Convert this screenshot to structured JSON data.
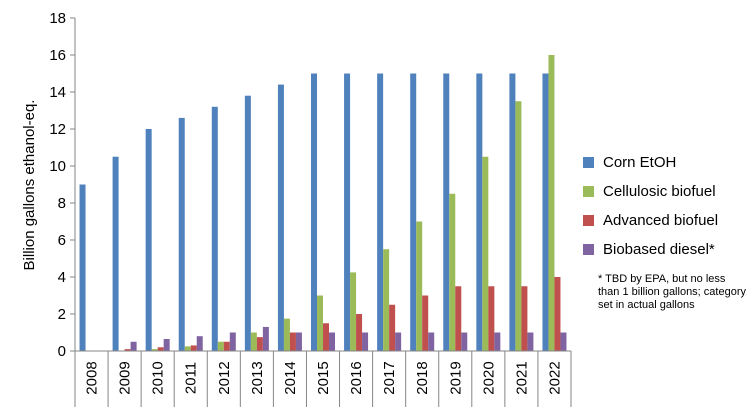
{
  "chart_data": {
    "type": "bar",
    "ylabel": "Billion gallons ethanol-eq.",
    "ylim": [
      0,
      18
    ],
    "yticks": [
      "0",
      "2",
      "4",
      "6",
      "8",
      "10",
      "12",
      "14",
      "16",
      "18"
    ],
    "categories": [
      "2008",
      "2009",
      "2010",
      "2011",
      "2012",
      "2013",
      "2014",
      "2015",
      "2016",
      "2017",
      "2018",
      "2019",
      "2020",
      "2021",
      "2022"
    ],
    "series": [
      {
        "name": "Corn EtOH",
        "color": "#4f81bd",
        "values": [
          9,
          10.5,
          12,
          12.6,
          13.2,
          13.8,
          14.4,
          15,
          15,
          15,
          15,
          15,
          15,
          15,
          15
        ]
      },
      {
        "name": "Cellulosic biofuel",
        "color": "#9bbb59",
        "values": [
          0,
          0,
          0.1,
          0.25,
          0.5,
          1,
          1.75,
          3,
          4.25,
          5.5,
          7,
          8.5,
          10.5,
          13.5,
          16
        ]
      },
      {
        "name": "Advanced biofuel",
        "color": "#c0504d",
        "values": [
          0,
          0.1,
          0.2,
          0.3,
          0.5,
          0.75,
          1,
          1.5,
          2,
          2.5,
          3,
          3.5,
          3.5,
          3.5,
          4
        ]
      },
      {
        "name": "Biobased diesel*",
        "color": "#8064a2",
        "values": [
          0,
          0.5,
          0.65,
          0.8,
          1,
          1.3,
          1,
          1,
          1,
          1,
          1,
          1,
          1,
          1,
          1
        ]
      }
    ],
    "grid": false,
    "legend": "right",
    "note": "* TBD by EPA, but no less than 1 billion gallons; category set in actual gallons"
  }
}
